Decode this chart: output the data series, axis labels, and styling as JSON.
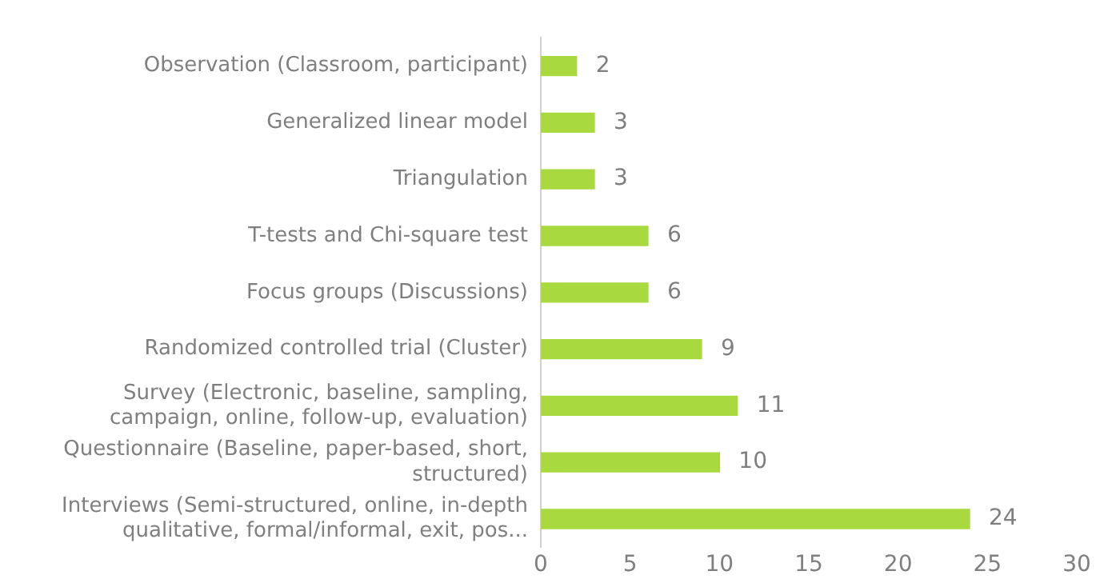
{
  "chart_data": {
    "type": "bar",
    "orientation": "horizontal",
    "categories": [
      "Observation (Classroom, participant)",
      "Generalized linear model",
      "Triangulation",
      "T-tests and Chi-square test",
      "Focus groups (Discussions)",
      "Randomized controlled trial (Cluster)",
      "Survey (Electronic, baseline, sampling, campaign, online, follow-up, evaluation)",
      "Questionnaire (Baseline, paper-based, short, structured)",
      "Interviews (Semi-structured, online, in-depth qualitative, formal/informal, exit, pos..."
    ],
    "values": [
      2,
      3,
      3,
      6,
      6,
      9,
      11,
      10,
      24
    ],
    "color": "#a8d93f",
    "xlim": [
      0,
      30
    ],
    "xticks": [
      0,
      5,
      10,
      15,
      20,
      25,
      30
    ],
    "grid": false,
    "legend": false,
    "data_labels": true
  }
}
